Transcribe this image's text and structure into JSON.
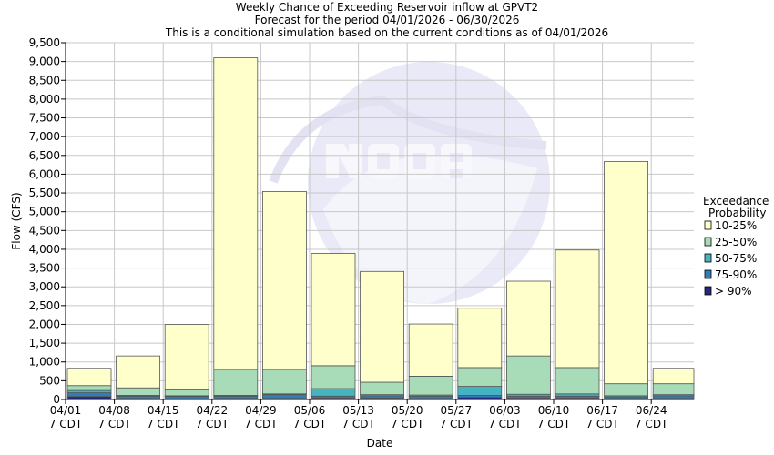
{
  "chart_data": {
    "type": "bar",
    "stacked": true,
    "title": "Weekly Chance of Exceeding Reservoir inflow at GPVT2",
    "subtitle": "Forecast for the period 04/01/2026 - 06/30/2026",
    "subtitle2": "This is a conditional simulation based on the current conditions as of 04/01/2026",
    "xlabel": "Date",
    "ylabel": "Flow (CFS)",
    "ylim": [
      0,
      9500
    ],
    "ytick_step": 500,
    "grid": true,
    "legend_title": [
      "Exceedance",
      "Probability"
    ],
    "legend_position": "right",
    "watermark": "NOAA - NATIONAL OCEANIC AND ATMOSPHERIC ADMINISTRATION",
    "categories": [
      [
        "04/01",
        "7 CDT"
      ],
      [
        "04/08",
        "7 CDT"
      ],
      [
        "04/15",
        "7 CDT"
      ],
      [
        "04/22",
        "7 CDT"
      ],
      [
        "04/29",
        "7 CDT"
      ],
      [
        "05/06",
        "7 CDT"
      ],
      [
        "05/13",
        "7 CDT"
      ],
      [
        "05/20",
        "7 CDT"
      ],
      [
        "05/27",
        "7 CDT"
      ],
      [
        "06/03",
        "7 CDT"
      ],
      [
        "06/10",
        "7 CDT"
      ],
      [
        "06/17",
        "7 CDT"
      ],
      [
        "06/24",
        "7 CDT"
      ]
    ],
    "series": [
      {
        "name": "> 90%",
        "color": "#28287a",
        "values": [
          80,
          30,
          20,
          30,
          30,
          40,
          40,
          30,
          60,
          40,
          40,
          30,
          30
        ]
      },
      {
        "name": "75-90%",
        "color": "#2e7fb5",
        "values": [
          100,
          60,
          60,
          60,
          100,
          50,
          60,
          60,
          50,
          50,
          50,
          40,
          70
        ]
      },
      {
        "name": "50-75%",
        "color": "#45b3c0",
        "values": [
          60,
          20,
          20,
          20,
          20,
          200,
          30,
          30,
          240,
          50,
          60,
          30,
          30
        ]
      },
      {
        "name": "25-50%",
        "color": "#a8dcb8",
        "values": [
          130,
          200,
          160,
          690,
          650,
          610,
          330,
          500,
          500,
          1020,
          700,
          320,
          290
        ]
      },
      {
        "name": "10-25%",
        "color": "#ffffcc",
        "values": [
          460,
          850,
          1740,
          8300,
          4740,
          2990,
          2950,
          1390,
          1580,
          1990,
          3130,
          5920,
          410
        ]
      }
    ],
    "legend_order": [
      "10-25%",
      "25-50%",
      "50-75%",
      "75-90%",
      "> 90%"
    ]
  }
}
